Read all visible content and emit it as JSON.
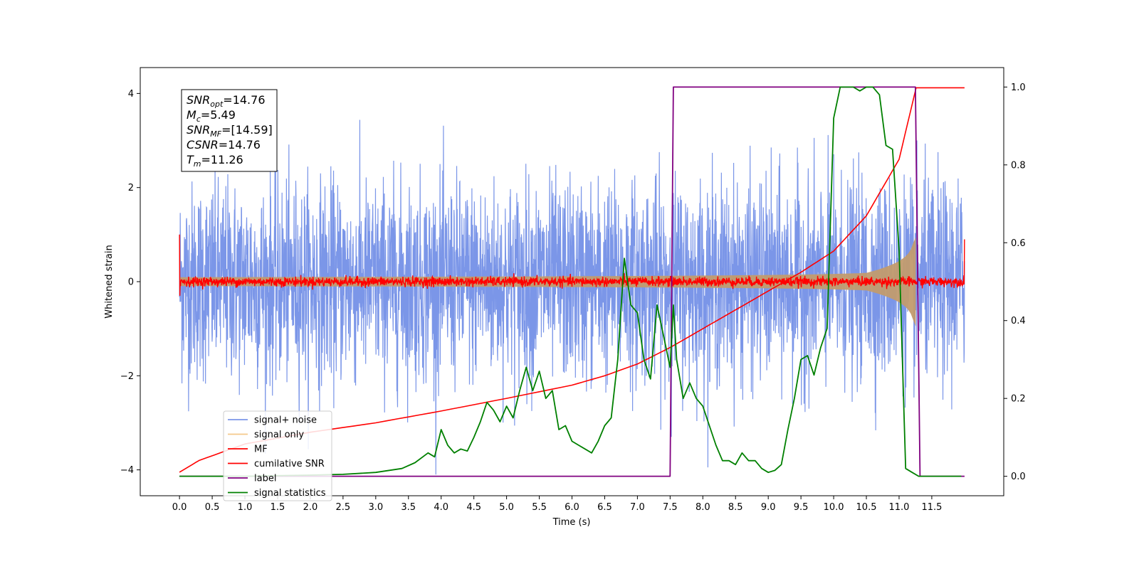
{
  "chart_data": {
    "type": "line",
    "xlabel": "Time (s)",
    "ylabel": "Whitened strain",
    "xlim": [
      -0.6,
      12.6
    ],
    "ylim": [
      -4.55,
      4.55
    ],
    "y2lim": [
      -0.05,
      1.05
    ],
    "x_ticks": [
      "0.0",
      "0.5",
      "1.0",
      "1.5",
      "2.0",
      "2.5",
      "3.0",
      "3.5",
      "4.0",
      "4.5",
      "5.0",
      "5.5",
      "6.0",
      "6.5",
      "7.0",
      "7.5",
      "8.0",
      "8.5",
      "9.0",
      "9.5",
      "10.0",
      "10.5",
      "11.0",
      "11.5"
    ],
    "y_ticks": [
      "-4",
      "-2",
      "0",
      "2",
      "4"
    ],
    "y2_ticks": [
      "0.0",
      "0.2",
      "0.4",
      "0.6",
      "0.8",
      "1.0"
    ],
    "info_box": [
      {
        "sym": "SNR",
        "sub": "opt",
        "value": "=14.76"
      },
      {
        "sym": "M",
        "sub": "c",
        "value": "=5.49"
      },
      {
        "sym": "SNR",
        "sub": "MF",
        "value": "=[14.59]"
      },
      {
        "sym": "CSNR",
        "sub": "",
        "value": "=14.76"
      },
      {
        "sym": "T",
        "sub": "m",
        "value": "=11.26"
      }
    ],
    "legend": [
      {
        "label": "signal+ noise",
        "color": "#7b96e8"
      },
      {
        "label": "signal only",
        "color": "#f5c98a"
      },
      {
        "label": "MF",
        "color": "#ff0000"
      },
      {
        "label": "cumilative SNR",
        "color": "#ff0000"
      },
      {
        "label": "label",
        "color": "#800080"
      },
      {
        "label": "signal statistics",
        "color": "#008000"
      }
    ],
    "series": [
      {
        "name": "signal+ noise",
        "axis": "left",
        "color": "#7b96e8",
        "kind": "noise",
        "x_range": [
          0.0,
          12.0
        ],
        "sigma": 1.0
      },
      {
        "name": "signal only",
        "axis": "left",
        "color": "#c29b6e",
        "kind": "chirp_envelope",
        "x_range": [
          0.0,
          11.26
        ],
        "merger_time": 11.26,
        "peak": 0.95
      },
      {
        "name": "MF",
        "axis": "left",
        "color": "#ff0000",
        "kind": "small_noise",
        "x_range": [
          0.0,
          12.0
        ],
        "sigma": 0.05
      },
      {
        "name": "cumilative SNR",
        "axis": "left",
        "color": "#ff0000",
        "x": [
          0.0,
          0.3,
          1.0,
          2.0,
          3.0,
          4.0,
          5.0,
          6.0,
          6.5,
          7.0,
          7.5,
          8.0,
          8.5,
          9.0,
          9.5,
          10.0,
          10.5,
          11.0,
          11.26,
          12.0
        ],
        "y": [
          -4.05,
          -3.8,
          -3.45,
          -3.2,
          -3.0,
          -2.75,
          -2.48,
          -2.2,
          -2.0,
          -1.75,
          -1.4,
          -1.0,
          -0.6,
          -0.2,
          0.2,
          0.65,
          1.4,
          2.6,
          4.12,
          4.12
        ]
      },
      {
        "name": "label",
        "axis": "right",
        "color": "#800080",
        "x": [
          0.0,
          7.5,
          7.55,
          11.25,
          11.32,
          12.0
        ],
        "y": [
          0.0,
          0.0,
          1.0,
          1.0,
          0.0,
          0.0
        ]
      },
      {
        "name": "signal statistics",
        "axis": "right",
        "color": "#008000",
        "x": [
          0.0,
          1.0,
          2.0,
          2.5,
          3.0,
          3.4,
          3.6,
          3.8,
          3.9,
          4.0,
          4.1,
          4.2,
          4.3,
          4.4,
          4.5,
          4.6,
          4.7,
          4.8,
          4.9,
          5.0,
          5.1,
          5.2,
          5.3,
          5.4,
          5.5,
          5.6,
          5.7,
          5.8,
          5.9,
          6.0,
          6.1,
          6.2,
          6.3,
          6.4,
          6.5,
          6.6,
          6.7,
          6.8,
          6.9,
          7.0,
          7.1,
          7.2,
          7.3,
          7.4,
          7.5,
          7.55,
          7.6,
          7.7,
          7.8,
          7.9,
          8.0,
          8.1,
          8.2,
          8.3,
          8.4,
          8.5,
          8.6,
          8.7,
          8.8,
          8.9,
          9.0,
          9.1,
          9.2,
          9.3,
          9.4,
          9.5,
          9.6,
          9.7,
          9.8,
          9.9,
          10.0,
          10.1,
          10.2,
          10.3,
          10.4,
          10.5,
          10.6,
          10.7,
          10.8,
          10.9,
          11.0,
          11.1,
          11.2,
          11.3,
          11.4,
          11.5,
          11.6,
          11.7,
          11.8,
          11.9,
          11.95
        ],
        "y": [
          0.0,
          0.0,
          0.003,
          0.005,
          0.01,
          0.02,
          0.035,
          0.06,
          0.05,
          0.12,
          0.08,
          0.06,
          0.07,
          0.065,
          0.1,
          0.14,
          0.19,
          0.17,
          0.14,
          0.18,
          0.15,
          0.22,
          0.28,
          0.22,
          0.27,
          0.2,
          0.22,
          0.12,
          0.13,
          0.09,
          0.08,
          0.07,
          0.06,
          0.09,
          0.13,
          0.15,
          0.3,
          0.56,
          0.44,
          0.42,
          0.3,
          0.25,
          0.44,
          0.36,
          0.28,
          0.44,
          0.3,
          0.2,
          0.24,
          0.2,
          0.18,
          0.13,
          0.08,
          0.04,
          0.04,
          0.03,
          0.06,
          0.04,
          0.04,
          0.02,
          0.01,
          0.015,
          0.03,
          0.12,
          0.2,
          0.3,
          0.31,
          0.26,
          0.33,
          0.38,
          0.92,
          1.0,
          1.0,
          1.0,
          0.99,
          1.0,
          1.0,
          0.98,
          0.85,
          0.84,
          0.58,
          0.02,
          0.01,
          0.0,
          0.0,
          0.0,
          0.0,
          0.0,
          0.0,
          0.0,
          0.0
        ]
      }
    ]
  }
}
